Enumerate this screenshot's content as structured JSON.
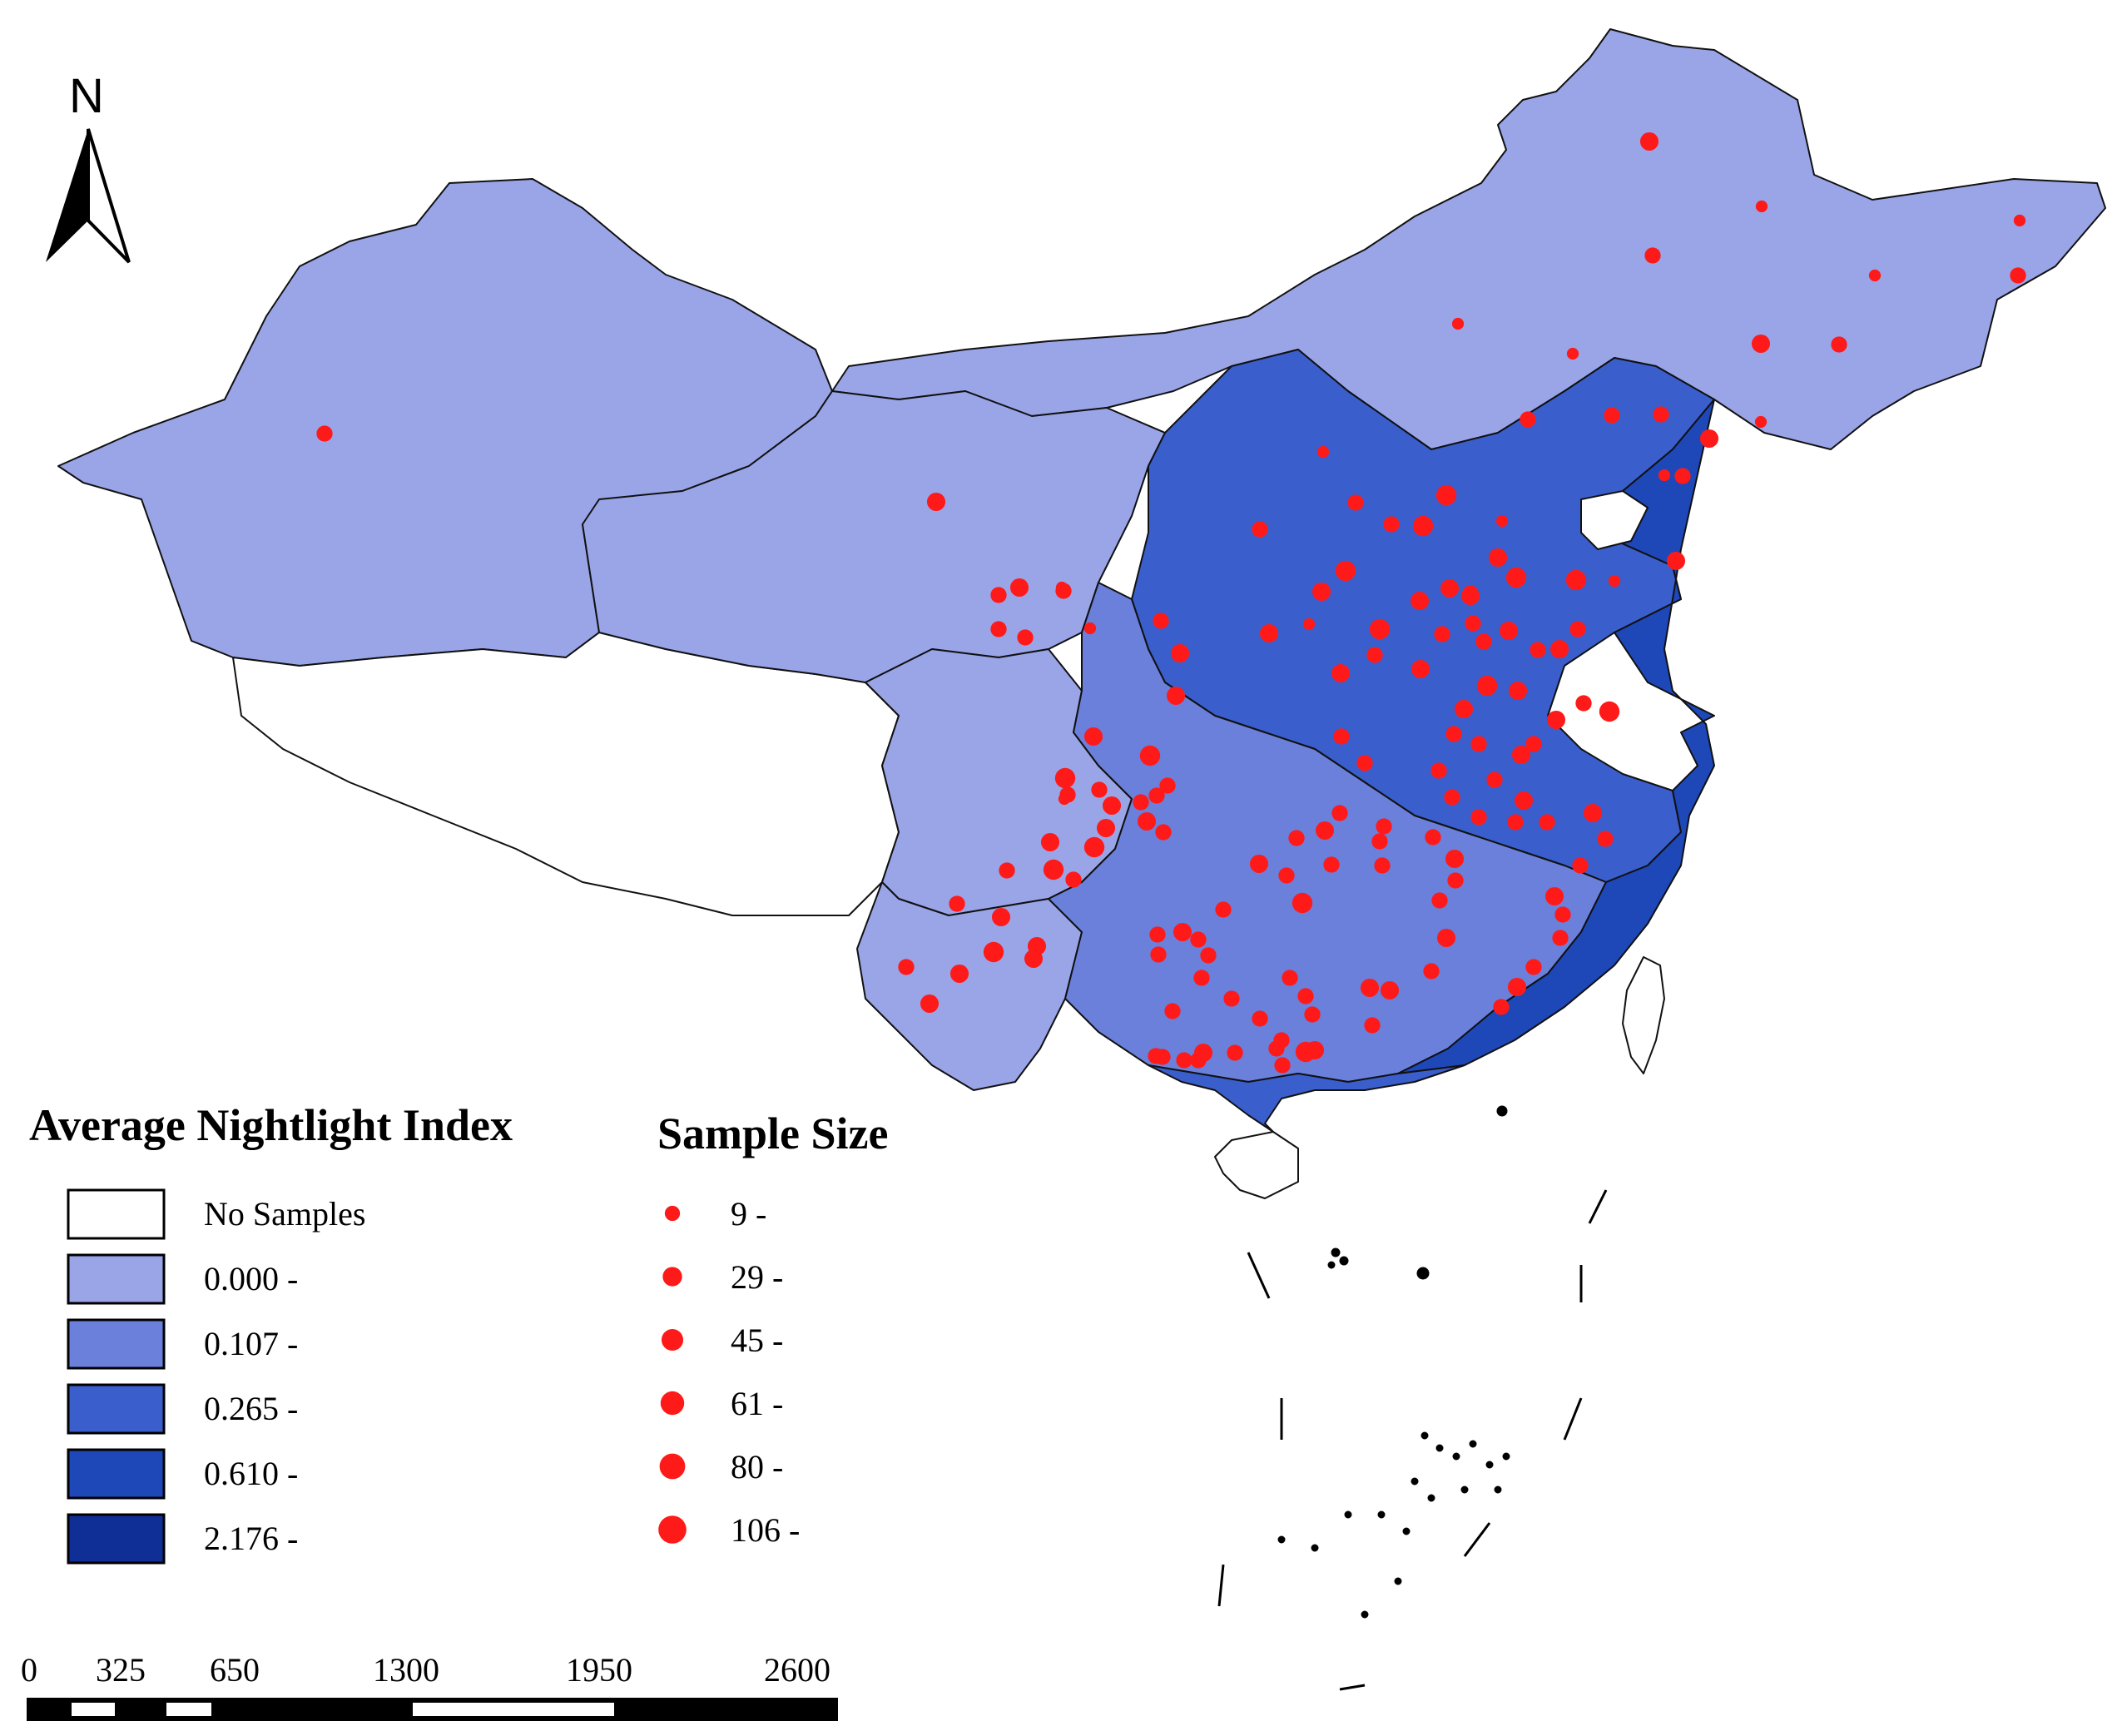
{
  "north_arrow": {
    "label": "N"
  },
  "nightlight_legend": {
    "title": "Average Nightlight Index",
    "classes": [
      {
        "label": "No Samples",
        "color": "#ffffff"
      },
      {
        "label": "0.000 -",
        "color": "#9aa5e8"
      },
      {
        "label": "0.107 -",
        "color": "#6b80db"
      },
      {
        "label": "0.265 -",
        "color": "#3a5fcc"
      },
      {
        "label": "0.610 -",
        "color": "#1e47b8"
      },
      {
        "label": "2.176 -",
        "color": "#0f2f96"
      }
    ]
  },
  "sample_legend": {
    "title": "Sample Size",
    "color": "#ff1a1a",
    "classes": [
      {
        "label": "9 -",
        "value": 9
      },
      {
        "label": "29 -",
        "value": 29
      },
      {
        "label": "45 -",
        "value": 45
      },
      {
        "label": "61 -",
        "value": 61
      },
      {
        "label": "80 -",
        "value": 80
      },
      {
        "label": "106 -",
        "value": 106
      }
    ]
  },
  "scale_bar": {
    "ticks": [
      "0",
      "325",
      "650",
      "1300",
      "1950",
      "2600"
    ]
  }
}
